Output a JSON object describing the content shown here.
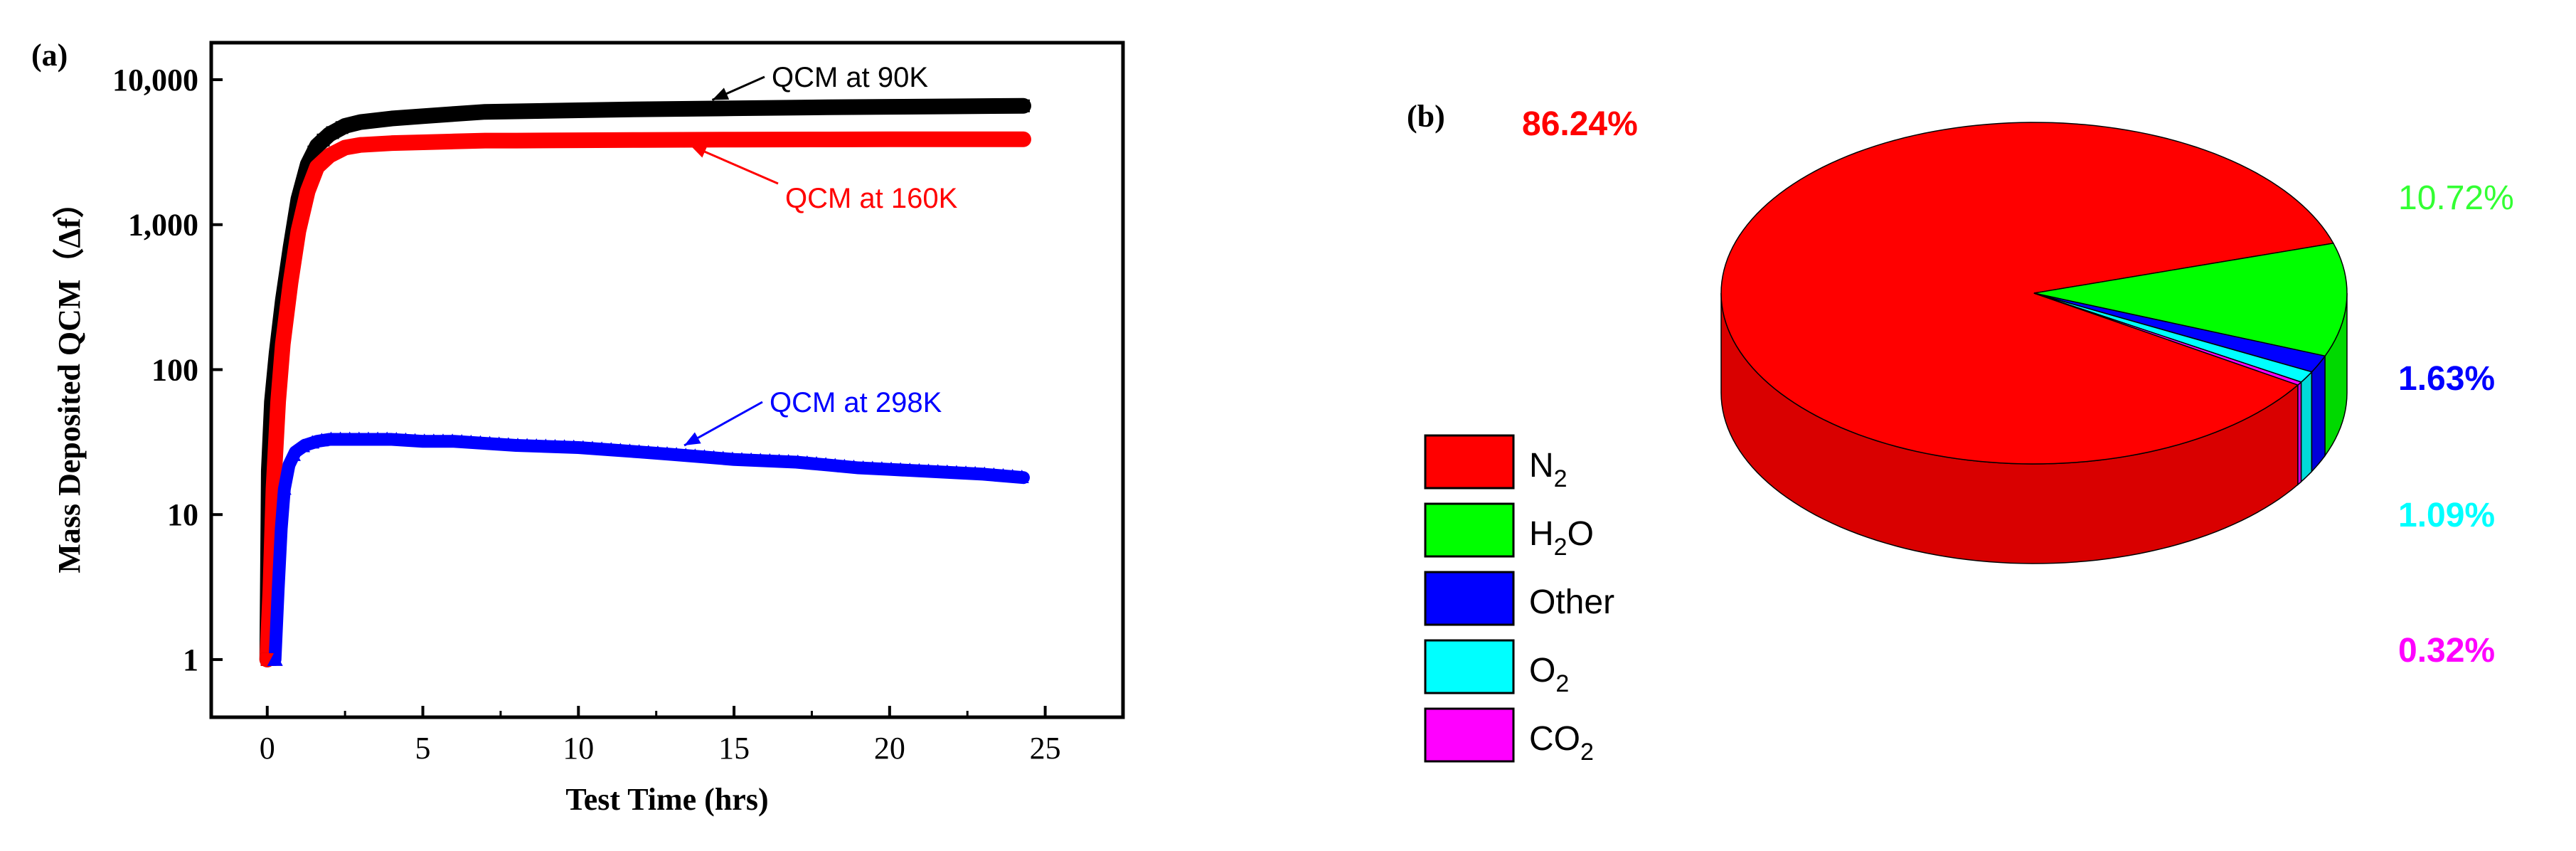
{
  "panel_a": {
    "label": "(a)",
    "ylabel": "Mass Deposited QCM（Δf）",
    "chart_data": {
      "type": "line",
      "title": "",
      "xlabel": "Test Time (hrs)",
      "ylabel": "Mass Deposited QCM（Δf）",
      "xlim": [
        -1.8,
        27.5
      ],
      "ylim": [
        0.4,
        18000
      ],
      "yscale": "log",
      "xticks": [
        0,
        5,
        10,
        15,
        20,
        25
      ],
      "xtick_labels": [
        "0",
        "5",
        "10",
        "15",
        "20",
        "25"
      ],
      "yticks": [
        1,
        10,
        100,
        1000,
        10000
      ],
      "ytick_labels": [
        "1",
        "10",
        "100",
        "1,000",
        "10,000"
      ],
      "series": [
        {
          "name": "QCM at 90K",
          "color": "#000000",
          "marker": "square",
          "x": [
            0,
            0.05,
            0.15,
            0.3,
            0.5,
            0.75,
            1.0,
            1.3,
            1.6,
            2.0,
            2.5,
            3.0,
            4.0,
            5.0,
            6.0,
            7.0,
            8.0,
            10.0,
            12.0,
            15.0,
            18.0,
            20.0,
            22.0,
            24.3
          ],
          "values": [
            1,
            20,
            60,
            130,
            300,
            700,
            1500,
            2600,
            3500,
            4200,
            4800,
            5100,
            5400,
            5600,
            5800,
            6000,
            6050,
            6150,
            6250,
            6350,
            6450,
            6500,
            6550,
            6600
          ]
        },
        {
          "name": "QCM at 160K",
          "color": "#ff0000",
          "marker": "circle",
          "x": [
            0,
            0.1,
            0.2,
            0.35,
            0.5,
            0.75,
            1.0,
            1.3,
            1.6,
            2.0,
            2.5,
            3.0,
            4.0,
            5.0,
            6.0,
            7.0,
            8.0,
            10.0,
            12.0,
            15.0,
            18.0,
            20.0,
            22.0,
            24.3
          ],
          "values": [
            1,
            3,
            15,
            60,
            150,
            400,
            900,
            1700,
            2500,
            3000,
            3400,
            3550,
            3650,
            3700,
            3750,
            3800,
            3800,
            3820,
            3840,
            3860,
            3870,
            3880,
            3880,
            3880
          ]
        },
        {
          "name": "QCM at 298K",
          "color": "#0000ff",
          "marker": "triangle",
          "x": [
            0.25,
            0.35,
            0.45,
            0.55,
            0.7,
            0.9,
            1.2,
            1.6,
            2.0,
            2.5,
            3.0,
            4.0,
            5.0,
            6.0,
            7.0,
            8.0,
            9.0,
            10.0,
            11.0,
            12.0,
            13.0,
            14.0,
            15.0,
            16.0,
            17.0,
            18.0,
            19.0,
            20.0,
            21.0,
            22.0,
            23.0,
            24.3
          ],
          "values": [
            1,
            3,
            8,
            15,
            22,
            27,
            30,
            32,
            33,
            33,
            33,
            33,
            32,
            32,
            31,
            30,
            29.5,
            29,
            28,
            27,
            26,
            25,
            24,
            23.5,
            23,
            22,
            21,
            20.5,
            20,
            19.5,
            19,
            18
          ]
        }
      ],
      "annotations": [
        {
          "text": "QCM at 90K",
          "series": 0,
          "arrow_at": 14.3,
          "color": "#000000"
        },
        {
          "text": "QCM at 160K",
          "series": 1,
          "arrow_at": 13.6,
          "color": "#ff0000"
        },
        {
          "text": "QCM at 298K",
          "series": 2,
          "arrow_at": 13.4,
          "color": "#0000ff"
        }
      ]
    }
  },
  "panel_b": {
    "label": "(b)",
    "chart_data": {
      "type": "pie",
      "style": "3d",
      "slices": [
        {
          "name": "N2",
          "value": 86.24,
          "label": "86.24%",
          "color": "#ff0000"
        },
        {
          "name": "H2O",
          "value": 10.72,
          "label": "10.72%",
          "color": "#00ff00"
        },
        {
          "name": "Other",
          "value": 1.63,
          "label": "1.63%",
          "color": "#0000ff"
        },
        {
          "name": "O2",
          "value": 1.09,
          "label": "1.09%",
          "color": "#00ffff"
        },
        {
          "name": "CO2",
          "value": 0.32,
          "label": "0.32%",
          "color": "#ff00ff"
        }
      ],
      "legend": [
        {
          "base": "N",
          "sub": "2",
          "color": "#ff0000"
        },
        {
          "base": "H",
          "sub": "2",
          "tail": "O",
          "color": "#00ff00"
        },
        {
          "base": "Other",
          "sub": "",
          "color": "#0000ff"
        },
        {
          "base": "O",
          "sub": "2",
          "color": "#00ffff"
        },
        {
          "base": "CO",
          "sub": "2",
          "color": "#ff00ff"
        }
      ],
      "value_label_colors": [
        "#ff0000",
        "#33ff33",
        "#0000ff",
        "#00ffff",
        "#ff00ff"
      ]
    }
  }
}
